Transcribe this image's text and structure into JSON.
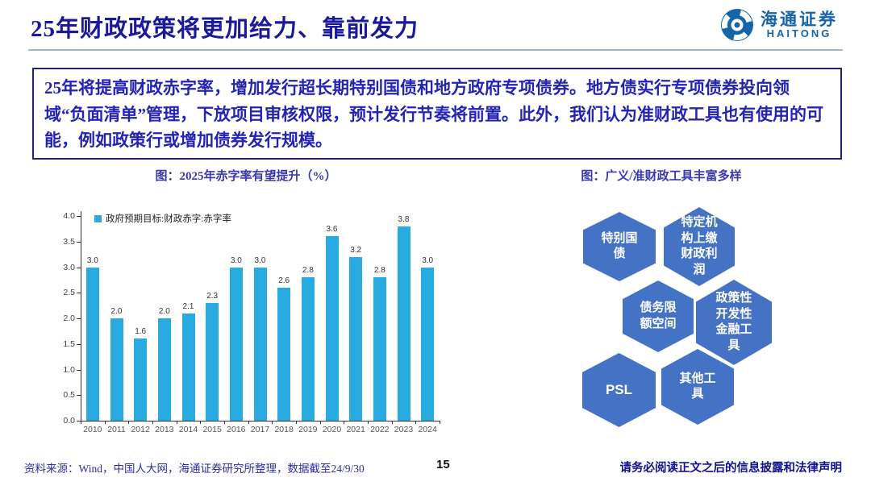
{
  "header": {
    "title": "25年财政政策将更加给力、靠前发力",
    "logo_cn": "海通证券",
    "logo_en": "HAITONG"
  },
  "summary_box": {
    "text": "25年将提高财政赤字率，增加发行超长期特别国债和地方政府专项债券。地方债实行专项债券投向领域“负面清单”管理，下放项目审核权限，预计发行节奏将前置。此外，我们认为准财政工具也有使用的可能，例如政策行或增加债券发行规模。"
  },
  "chart_data": {
    "type": "bar",
    "title": "图：2025年赤字率有望提升（%）",
    "legend": [
      "政府预期目标:财政赤字:赤字率"
    ],
    "legend_position": "top-left",
    "categories": [
      "2010",
      "2011",
      "2012",
      "2013",
      "2014",
      "2015",
      "2016",
      "2017",
      "2018",
      "2019",
      "2020",
      "2021",
      "2022",
      "2023",
      "2024"
    ],
    "values": [
      3.0,
      2.0,
      1.6,
      2.0,
      2.1,
      2.3,
      3.0,
      3.0,
      2.6,
      2.8,
      3.6,
      3.2,
      2.8,
      3.8,
      3.0
    ],
    "xlabel": "",
    "ylabel": "",
    "ylim": [
      0,
      4
    ],
    "ytick_step": 0.5,
    "grid": false,
    "bar_color": "#29abe2"
  },
  "right_diagram": {
    "title": "图：广义/准财政工具丰富多样",
    "hex_color": "#4472c4",
    "hexagons": [
      {
        "label": "特别国债"
      },
      {
        "label": "特定机构上缴财政利润"
      },
      {
        "label": "债务限额空间"
      },
      {
        "label": "政策性开发性金融工具"
      },
      {
        "label": "PSL"
      },
      {
        "label": "其他工具"
      }
    ]
  },
  "footer": {
    "source": "资料来源：Wind，中国人大网，海通证券研究所整理，数据截至24/9/30",
    "page_number": "15",
    "disclaimer": "请务必阅读正文之后的信息披露和法律声明"
  }
}
